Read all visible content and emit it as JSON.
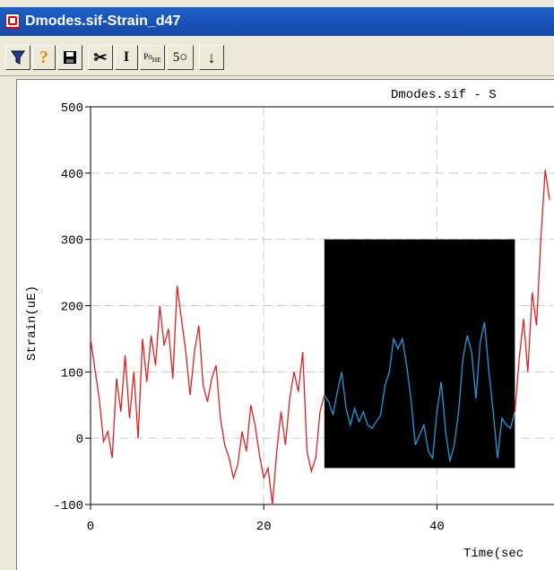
{
  "window": {
    "title": "Dmodes.sif-Strain_d47"
  },
  "toolbar": {
    "buttons": [
      {
        "name": "filter-tool-button",
        "icon": "funnel-icon",
        "glyph": ""
      },
      {
        "name": "help-button",
        "icon": "question-icon",
        "glyph": "?"
      },
      {
        "name": "save-button",
        "icon": "floppy-disk-icon",
        "glyph": ""
      },
      {
        "name": "cut-button",
        "icon": "scissors-icon",
        "glyph": "✂"
      },
      {
        "name": "cursor-button",
        "icon": "text-cursor-icon",
        "glyph": "I"
      },
      {
        "name": "power-button",
        "icon": "power-icon",
        "glyph": ""
      },
      {
        "name": "fifty-button",
        "icon": "fifty-icon",
        "glyph": "5○"
      },
      {
        "name": "down-arrow-button",
        "icon": "down-arrow-icon",
        "glyph": "↓"
      }
    ],
    "power_label_top": "Po",
    "power_label_sub": "H",
    "power_label_sub2": "E"
  },
  "chart_data": {
    "type": "line",
    "title": "Dmodes.sif - S",
    "xlabel": "Time(sec",
    "ylabel": "Strain(uE)",
    "xlim": [
      0,
      53
    ],
    "ylim": [
      -100,
      500
    ],
    "x_ticks": [
      "0",
      "20",
      "40"
    ],
    "y_ticks": [
      "500",
      "400",
      "300",
      "200",
      "100",
      "0",
      "-100"
    ],
    "x_tick_values": [
      0,
      20,
      40
    ],
    "y_tick_values": [
      500,
      400,
      300,
      200,
      100,
      0,
      -100
    ],
    "grid": true,
    "highlight": {
      "x": [
        27,
        49
      ],
      "y": [
        -45,
        300
      ],
      "color": "#000000"
    },
    "colors": {
      "line": "#e02020",
      "highlight_line": "#1e9be0"
    },
    "series": [
      {
        "color": "#e02020",
        "x": [
          0,
          0.5,
          1,
          1.5,
          2,
          2.5,
          3,
          3.5,
          4,
          4.5,
          5,
          5.5,
          6,
          6.5,
          7,
          7.5,
          8,
          8.5,
          9,
          9.5,
          10,
          10.5,
          11,
          11.5,
          12,
          12.5,
          13,
          13.5,
          14,
          14.5,
          15,
          15.5,
          16,
          16.5,
          17,
          17.5,
          18,
          18.5,
          19,
          19.5,
          20,
          20.5,
          21,
          21.5,
          22,
          22.5,
          23,
          23.5,
          24,
          24.5,
          25,
          25.5,
          26,
          26.5,
          27
        ],
        "y": [
          150,
          105,
          60,
          -5,
          10,
          -30,
          90,
          40,
          125,
          30,
          100,
          0,
          150,
          85,
          155,
          110,
          200,
          140,
          165,
          90,
          230,
          180,
          130,
          65,
          130,
          170,
          80,
          55,
          90,
          110,
          30,
          -10,
          -30,
          -60,
          -40,
          10,
          -20,
          50,
          20,
          -25,
          -60,
          -45,
          -100,
          -20,
          40,
          -10,
          60,
          100,
          70,
          130,
          -20,
          -50,
          -30,
          40,
          65
        ]
      },
      {
        "color": "#1e9be0",
        "x": [
          27,
          27.5,
          28,
          28.5,
          29,
          29.5,
          30,
          30.5,
          31,
          31.5,
          32,
          32.5,
          33,
          33.5,
          34,
          34.5,
          35,
          35.5,
          36,
          36.5,
          37,
          37.5,
          38,
          38.5,
          39,
          39.5,
          40,
          40.5,
          41,
          41.5,
          42,
          42.5,
          43,
          43.5,
          44,
          44.5,
          45,
          45.5,
          46,
          46.5,
          47,
          47.5,
          48,
          48.5,
          49
        ],
        "y": [
          65,
          55,
          35,
          70,
          100,
          45,
          20,
          45,
          25,
          40,
          20,
          15,
          25,
          35,
          80,
          100,
          150,
          135,
          150,
          110,
          60,
          -10,
          5,
          20,
          -20,
          -30,
          40,
          85,
          10,
          -35,
          -10,
          40,
          120,
          155,
          130,
          60,
          145,
          175,
          100,
          40,
          -30,
          30,
          20,
          15,
          40
        ]
      },
      {
        "color": "#e02020",
        "x": [
          49,
          49.5,
          50,
          50.5,
          51,
          51.5,
          52,
          52.5,
          53
        ],
        "y": [
          40,
          120,
          180,
          100,
          220,
          170,
          300,
          405,
          360
        ]
      }
    ]
  }
}
